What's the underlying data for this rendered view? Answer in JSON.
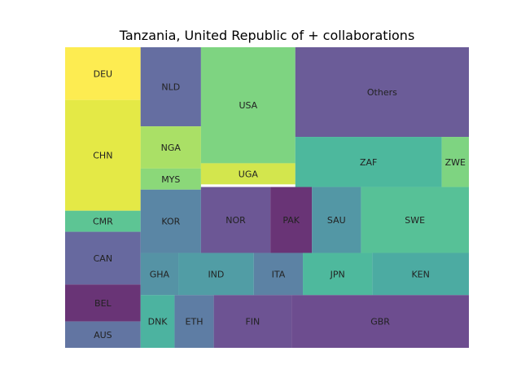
{
  "chart_data": {
    "type": "treemap",
    "title": "Tanzania, United Republic of + collaborations",
    "cells": [
      {
        "label": "DEU",
        "color": "#fde725",
        "c": [
          0.0,
          0.0,
          1.0,
          1.0
        ]
      },
      {
        "label": "CHN",
        "color": "#dde318",
        "c": [
          0.0,
          1.0,
          1.0,
          3.1
        ]
      },
      {
        "label": "CMR",
        "color": "#35b779",
        "c": [
          0.0,
          3.1,
          1.0,
          3.5
        ]
      },
      {
        "label": "CAN",
        "color": "#414487",
        "c": [
          0.0,
          3.5,
          1.0,
          4.5
        ]
      },
      {
        "label": "BEL",
        "color": "#440154",
        "c": [
          0.0,
          4.5,
          1.0,
          5.2
        ]
      },
      {
        "label": "AUS",
        "color": "#3b528b",
        "c": [
          0.0,
          5.2,
          1.0,
          5.7
        ]
      },
      {
        "label": "NLD",
        "color": "#3e4a89",
        "c": [
          1.0,
          0.0,
          1.8,
          1.5
        ]
      },
      {
        "label": "NGA",
        "color": "#95d840",
        "c": [
          1.0,
          1.5,
          1.8,
          2.3
        ]
      },
      {
        "label": "MYS",
        "color": "#6ece58",
        "c": [
          1.0,
          2.3,
          1.8,
          2.7
        ]
      },
      {
        "label": "KOR",
        "color": "#31688e",
        "c": [
          1.0,
          2.7,
          1.8,
          3.9
        ]
      },
      {
        "label": "USA",
        "color": "#5ec962",
        "c": [
          1.8,
          0.0,
          3.05,
          2.2
        ]
      },
      {
        "label": "UGA",
        "color": "#c8e020",
        "c": [
          1.8,
          2.2,
          3.05,
          2.6
        ]
      },
      {
        "label": "Others",
        "color": "#46337e",
        "c": [
          3.05,
          0.0,
          5.35,
          1.7
        ]
      },
      {
        "label": "ZAF",
        "color": "#21a685",
        "c": [
          3.05,
          1.7,
          4.99,
          2.65
        ]
      },
      {
        "label": "ZWE",
        "color": "#5ec962",
        "c": [
          4.99,
          1.7,
          5.35,
          2.65
        ]
      },
      {
        "label": "NOR",
        "color": "#472d7b",
        "c": [
          1.8,
          2.65,
          2.72,
          3.9
        ]
      },
      {
        "label": "PAK",
        "color": "#440154",
        "c": [
          2.72,
          2.65,
          3.27,
          3.9
        ]
      },
      {
        "label": "SAU",
        "color": "#287d8e",
        "c": [
          3.27,
          2.65,
          3.92,
          3.9
        ]
      },
      {
        "label": "SWE",
        "color": "#2db27d",
        "c": [
          3.92,
          2.65,
          5.35,
          3.9
        ]
      },
      {
        "label": "GHA",
        "color": "#2a788e",
        "c": [
          1.0,
          3.9,
          1.5,
          4.7
        ]
      },
      {
        "label": "IND",
        "color": "#25858e",
        "c": [
          1.5,
          3.9,
          2.5,
          4.7
        ]
      },
      {
        "label": "ITA",
        "color": "#33638d",
        "c": [
          2.5,
          3.9,
          3.15,
          4.7
        ]
      },
      {
        "label": "JPN",
        "color": "#22a884",
        "c": [
          3.15,
          3.9,
          4.07,
          4.7
        ]
      },
      {
        "label": "KEN",
        "color": "#1f968b",
        "c": [
          4.07,
          3.9,
          5.35,
          4.7
        ]
      },
      {
        "label": "DNK",
        "color": "#1fa088",
        "c": [
          1.0,
          4.7,
          1.45,
          5.7
        ]
      },
      {
        "label": "ETH",
        "color": "#365c8d",
        "c": [
          1.45,
          4.7,
          1.97,
          5.7
        ]
      },
      {
        "label": "FIN",
        "color": "#482878",
        "c": [
          1.97,
          4.7,
          3.0,
          5.7
        ]
      },
      {
        "label": "GBR",
        "color": "#482173",
        "c": [
          3.0,
          4.7,
          5.35,
          5.7
        ]
      }
    ]
  }
}
